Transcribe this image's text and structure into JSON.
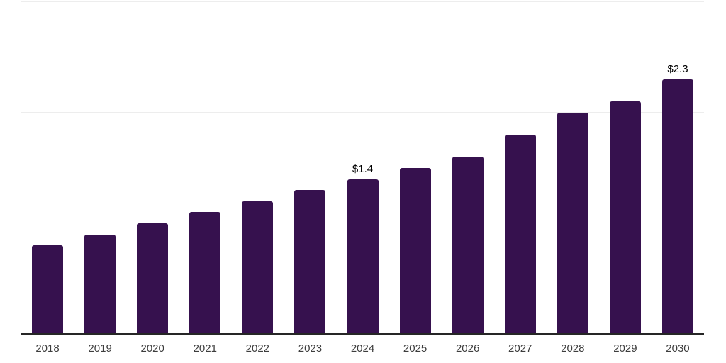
{
  "chart_data": {
    "type": "bar",
    "title": "",
    "xlabel": "",
    "ylabel": "",
    "categories": [
      "2018",
      "2019",
      "2020",
      "2021",
      "2022",
      "2023",
      "2024",
      "2025",
      "2026",
      "2027",
      "2028",
      "2029",
      "2030"
    ],
    "values": [
      0.8,
      0.9,
      1.0,
      1.1,
      1.2,
      1.3,
      1.4,
      1.5,
      1.6,
      1.8,
      2.0,
      2.1,
      2.3
    ],
    "point_labels": [
      "",
      "",
      "",
      "",
      "",
      "",
      "$1.4",
      "",
      "",
      "",
      "",
      "",
      "$2.3"
    ],
    "ylim": [
      0,
      3
    ],
    "gridline_values": [
      1,
      2,
      3
    ],
    "grid": true,
    "legend": false,
    "y_tick_labels_visible": false,
    "colors": {
      "bar": "#36114e",
      "axis": "#262626",
      "gridline": "#ededed",
      "tick_label": "#3d3d3d",
      "value_label": "#000000",
      "background": "#ffffff"
    }
  }
}
